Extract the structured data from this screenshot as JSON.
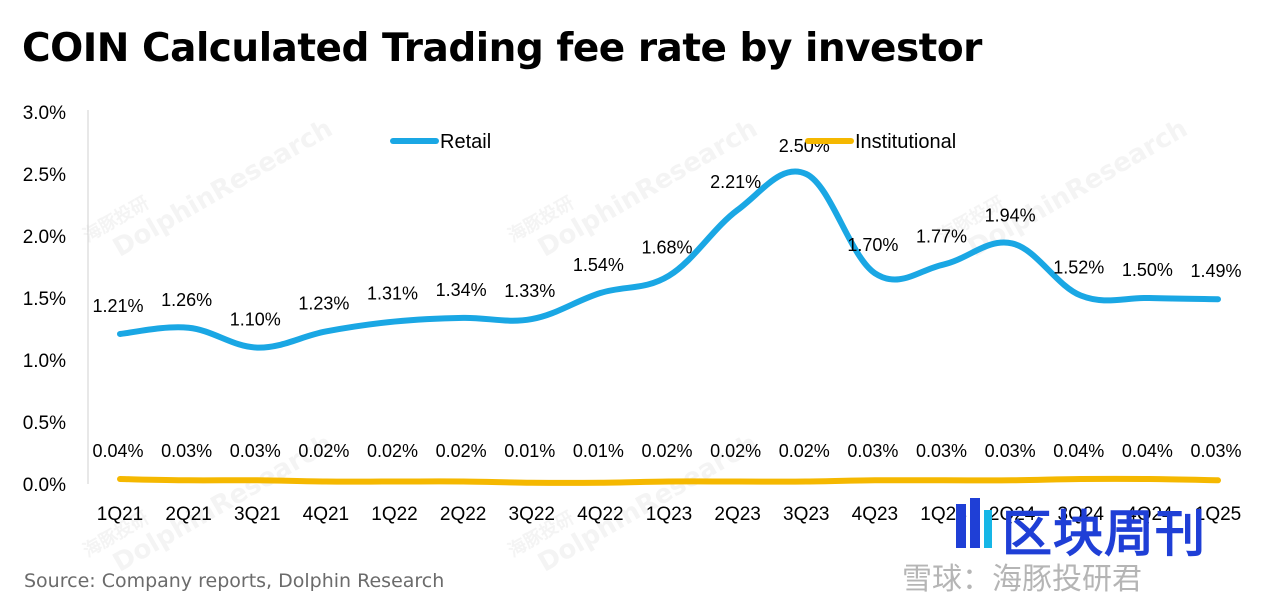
{
  "chart_data": {
    "type": "line",
    "title": "COIN Calculated Trading fee rate by investor",
    "categories": [
      "1Q21",
      "2Q21",
      "3Q21",
      "4Q21",
      "1Q22",
      "2Q22",
      "3Q22",
      "4Q22",
      "1Q23",
      "2Q23",
      "3Q23",
      "4Q23",
      "1Q24",
      "2Q24",
      "3Q24",
      "4Q24",
      "1Q25"
    ],
    "series": [
      {
        "name": "Retail",
        "color": "#1aa7e4",
        "values": [
          1.21,
          1.26,
          1.1,
          1.23,
          1.31,
          1.34,
          1.33,
          1.54,
          1.68,
          2.21,
          2.5,
          1.7,
          1.77,
          1.94,
          1.52,
          1.5,
          1.49
        ],
        "labels": [
          "1.21%",
          "1.26%",
          "1.10%",
          "1.23%",
          "1.31%",
          "1.34%",
          "1.33%",
          "1.54%",
          "1.68%",
          "2.21%",
          "2.50%",
          "1.70%",
          "1.77%",
          "1.94%",
          "1.52%",
          "1.50%",
          "1.49%"
        ]
      },
      {
        "name": "Institutional",
        "color": "#f5b800",
        "values": [
          0.04,
          0.03,
          0.03,
          0.02,
          0.02,
          0.02,
          0.01,
          0.01,
          0.02,
          0.02,
          0.02,
          0.03,
          0.03,
          0.03,
          0.04,
          0.04,
          0.03
        ],
        "labels": [
          "0.04%",
          "0.03%",
          "0.03%",
          "0.02%",
          "0.02%",
          "0.02%",
          "0.01%",
          "0.01%",
          "0.02%",
          "0.02%",
          "0.02%",
          "0.03%",
          "0.03%",
          "0.03%",
          "0.04%",
          "0.04%",
          "0.03%"
        ]
      }
    ],
    "ylim": [
      0,
      3.0
    ],
    "yticks": [
      "0.0%",
      "0.5%",
      "1.0%",
      "1.5%",
      "2.0%",
      "2.5%",
      "3.0%"
    ],
    "ytick_values": [
      0,
      0.5,
      1.0,
      1.5,
      2.0,
      2.5,
      3.0
    ],
    "xlabel": "",
    "ylabel": "",
    "grid": false,
    "legend": "top-center",
    "source": "Source: Company reports, Dolphin Research"
  },
  "watermark": {
    "name": "DolphinResearch",
    "cn": "海豚投研"
  },
  "logo": {
    "brand": "区块周刊",
    "snowball": "雪球：海豚投研君",
    "color": "#1f3fd6"
  }
}
